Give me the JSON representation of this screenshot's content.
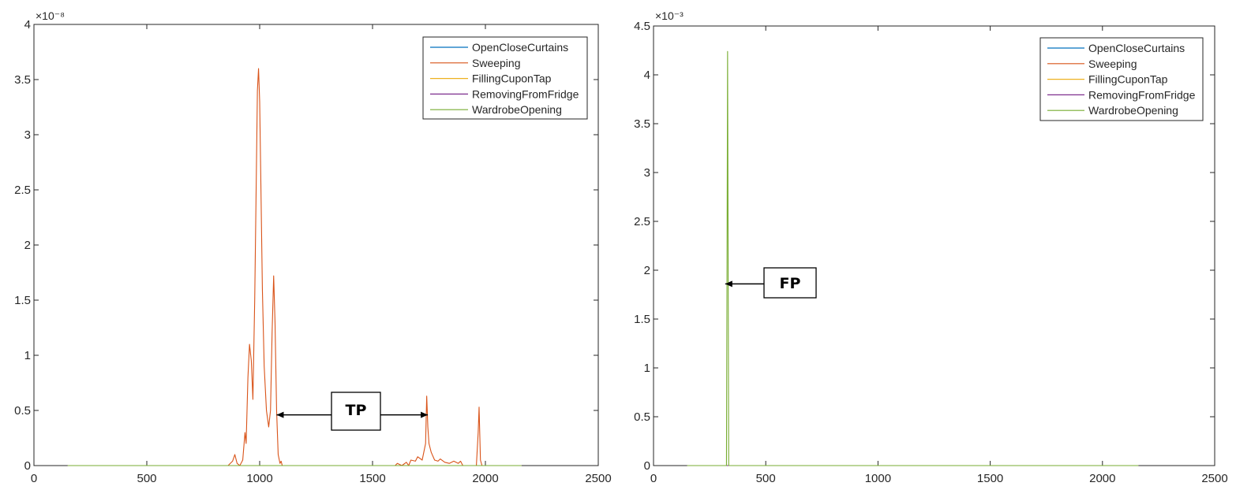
{
  "colors": {
    "OpenCloseCurtains": "#0072BD",
    "Sweeping": "#D95319",
    "FillingCuponTap": "#EDB120",
    "RemovingFromFridge": "#7E2F8E",
    "WardrobeOpening": "#77AC30"
  },
  "chart_data": [
    {
      "type": "line",
      "title": "",
      "xlabel": "",
      "ylabel": "",
      "xlim": [
        0,
        2500
      ],
      "ylim": [
        0,
        4
      ],
      "y_exponent": "×10⁻⁸",
      "x_ticks": [
        "0",
        "500",
        "1000",
        "1500",
        "2000",
        "2500"
      ],
      "y_ticks": [
        "0",
        "0.5",
        "1",
        "1.5",
        "2",
        "2.5",
        "3",
        "3.5",
        "4"
      ],
      "legend_position": "top-right",
      "legend": [
        "OpenCloseCurtains",
        "Sweeping",
        "FillingCuponTap",
        "RemovingFromFridge",
        "WardrobeOpening"
      ],
      "series": [
        {
          "name": "OpenCloseCurtains",
          "x": [
            150,
            2160
          ],
          "values": [
            0,
            0
          ]
        },
        {
          "name": "Sweeping",
          "x": [
            150,
            860,
            880,
            890,
            900,
            912,
            925,
            935,
            940,
            948,
            955,
            963,
            970,
            978,
            985,
            990,
            995,
            1000,
            1005,
            1012,
            1020,
            1030,
            1040,
            1048,
            1055,
            1062,
            1068,
            1075,
            1082,
            1090,
            1095,
            1100,
            1110,
            1600,
            1610,
            1630,
            1650,
            1660,
            1670,
            1690,
            1700,
            1720,
            1725,
            1735,
            1740,
            1745,
            1750,
            1760,
            1775,
            1790,
            1800,
            1820,
            1840,
            1860,
            1880,
            1890,
            1900,
            1910,
            1960,
            1968,
            1972,
            1978,
            1985,
            2160
          ],
          "values": [
            0,
            0,
            0.04,
            0.1,
            0.02,
            0,
            0.05,
            0.3,
            0.2,
            0.8,
            1.1,
            0.95,
            0.6,
            1.5,
            2.6,
            3.4,
            3.6,
            3.3,
            2.6,
            1.6,
            0.9,
            0.5,
            0.35,
            0.5,
            1.2,
            1.72,
            1.3,
            0.5,
            0.1,
            0.02,
            0.04,
            0.0,
            0.0,
            0.0,
            0.02,
            0.0,
            0.03,
            0.0,
            0.05,
            0.04,
            0.08,
            0.05,
            0.1,
            0.2,
            0.63,
            0.35,
            0.2,
            0.12,
            0.05,
            0.04,
            0.06,
            0.03,
            0.02,
            0.04,
            0.02,
            0.04,
            0.0,
            0.0,
            0.0,
            0.3,
            0.53,
            0.05,
            0.0,
            0.0
          ]
        },
        {
          "name": "FillingCuponTap",
          "x": [
            150,
            2160
          ],
          "values": [
            0,
            0
          ]
        },
        {
          "name": "RemovingFromFridge",
          "x": [
            150,
            2160
          ],
          "values": [
            0,
            0
          ]
        },
        {
          "name": "WardrobeOpening",
          "x": [
            150,
            2160
          ],
          "values": [
            0,
            0
          ]
        }
      ],
      "annotation": {
        "text": "TP",
        "arrow_targets_x": [
          1075,
          1745
        ],
        "arrow_y": 0.46
      }
    },
    {
      "type": "line",
      "title": "",
      "xlabel": "",
      "ylabel": "",
      "xlim": [
        0,
        2500
      ],
      "ylim": [
        0,
        4.5
      ],
      "y_exponent": "×10⁻³",
      "x_ticks": [
        "0",
        "500",
        "1000",
        "1500",
        "2000",
        "2500"
      ],
      "y_ticks": [
        "0",
        "0.5",
        "1",
        "1.5",
        "2",
        "2.5",
        "3",
        "3.5",
        "4",
        "4.5"
      ],
      "legend_position": "top-right",
      "legend": [
        "OpenCloseCurtains",
        "Sweeping",
        "FillingCuponTap",
        "RemovingFromFridge",
        "WardrobeOpening"
      ],
      "series": [
        {
          "name": "OpenCloseCurtains",
          "x": [
            150,
            2160
          ],
          "values": [
            0,
            0
          ]
        },
        {
          "name": "Sweeping",
          "x": [
            150,
            2160
          ],
          "values": [
            0,
            0
          ]
        },
        {
          "name": "FillingCuponTap",
          "x": [
            150,
            2160
          ],
          "values": [
            0,
            0
          ]
        },
        {
          "name": "RemovingFromFridge",
          "x": [
            150,
            2160
          ],
          "values": [
            0,
            0
          ]
        },
        {
          "name": "WardrobeOpening",
          "x": [
            150,
            325,
            328,
            330,
            332,
            335,
            2160
          ],
          "values": [
            0,
            0,
            2.5,
            4.24,
            2.5,
            0,
            0
          ]
        }
      ],
      "annotation": {
        "text": "FP",
        "arrow_target_x": 330,
        "arrow_y": 1.86
      }
    }
  ]
}
